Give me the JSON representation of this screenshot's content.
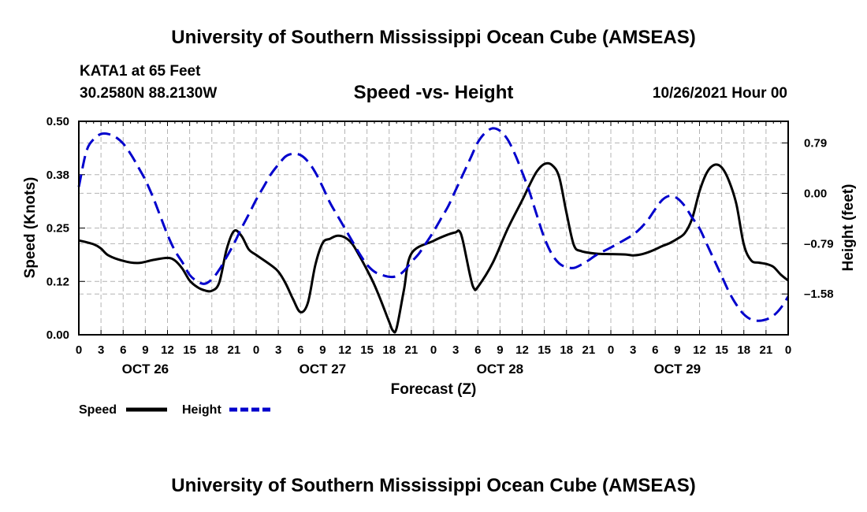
{
  "header": {
    "title": "University of Southern Mississippi Ocean Cube (AMSEAS)",
    "station": "KATA1 at 65 Feet",
    "coords": "30.2580N  88.2130W",
    "subtitle": "Speed -vs- Height",
    "datetime": "10/26/2021 Hour 00"
  },
  "footer": {
    "title": "University of Southern Mississippi Ocean Cube (AMSEAS)"
  },
  "chart_data": {
    "type": "line",
    "xlabel": "Forecast (Z)",
    "ylabel_left": "Speed (Knots)",
    "ylabel_right": "Height (feet)",
    "x_hours_range": [
      0,
      96
    ],
    "x_tick_labels": [
      "0",
      "3",
      "6",
      "9",
      "12",
      "15",
      "18",
      "21",
      "0",
      "3",
      "6",
      "9",
      "12",
      "15",
      "18",
      "21",
      "0",
      "3",
      "6",
      "9",
      "12",
      "15",
      "18",
      "21",
      "0",
      "3",
      "6",
      "9",
      "12",
      "15",
      "18",
      "21",
      "0"
    ],
    "day_labels": [
      {
        "label": "OCT 26",
        "hour": 9
      },
      {
        "label": "OCT 27",
        "hour": 33
      },
      {
        "label": "OCT 28",
        "hour": 57
      },
      {
        "label": "OCT 29",
        "hour": 81
      }
    ],
    "left_axis": {
      "ylim": [
        0,
        0.5
      ],
      "ticks": [
        0.0,
        0.125,
        0.25,
        0.375,
        0.5
      ],
      "tick_labels": [
        "0.00",
        "0.12",
        "0.25",
        "0.38",
        "0.50"
      ]
    },
    "right_axis": {
      "ylim": [
        -2.22,
        1.13
      ],
      "ticks": [
        0.79,
        0.0,
        -0.79,
        -1.58
      ],
      "tick_labels": [
        "0.79",
        "0.00",
        "-0.79",
        "-1.58"
      ]
    },
    "grid": true,
    "legend": [
      {
        "name": "Speed",
        "color": "#000000",
        "style": "solid"
      },
      {
        "name": "Height",
        "color": "#0000cc",
        "style": "dashed"
      }
    ],
    "series": [
      {
        "name": "Speed",
        "axis": "left",
        "color": "#000000",
        "dashed": false,
        "points": [
          [
            0,
            0.221
          ],
          [
            2,
            0.212
          ],
          [
            3,
            0.202
          ],
          [
            4,
            0.186
          ],
          [
            6,
            0.173
          ],
          [
            8,
            0.168
          ],
          [
            10,
            0.175
          ],
          [
            12,
            0.18
          ],
          [
            13,
            0.174
          ],
          [
            14,
            0.155
          ],
          [
            15,
            0.127
          ],
          [
            16,
            0.112
          ],
          [
            17,
            0.104
          ],
          [
            18,
            0.103
          ],
          [
            19,
            0.122
          ],
          [
            20,
            0.2
          ],
          [
            21,
            0.243
          ],
          [
            22,
            0.232
          ],
          [
            23,
            0.2
          ],
          [
            24,
            0.187
          ],
          [
            26,
            0.163
          ],
          [
            27,
            0.148
          ],
          [
            28,
            0.12
          ],
          [
            29,
            0.083
          ],
          [
            30,
            0.053
          ],
          [
            31,
            0.075
          ],
          [
            32,
            0.163
          ],
          [
            33,
            0.215
          ],
          [
            34,
            0.225
          ],
          [
            35,
            0.232
          ],
          [
            36,
            0.228
          ],
          [
            37,
            0.213
          ],
          [
            38,
            0.184
          ],
          [
            39,
            0.152
          ],
          [
            40,
            0.117
          ],
          [
            41,
            0.075
          ],
          [
            42,
            0.03
          ],
          [
            42.5,
            0.01
          ],
          [
            43,
            0.015
          ],
          [
            44,
            0.105
          ],
          [
            45,
            0.19
          ],
          [
            48,
            0.22
          ],
          [
            50,
            0.235
          ],
          [
            51,
            0.24
          ],
          [
            51.5,
            0.243
          ],
          [
            52,
            0.218
          ],
          [
            53,
            0.135
          ],
          [
            53.5,
            0.108
          ],
          [
            54,
            0.112
          ],
          [
            56,
            0.168
          ],
          [
            58,
            0.247
          ],
          [
            60,
            0.315
          ],
          [
            61,
            0.351
          ],
          [
            62,
            0.383
          ],
          [
            63,
            0.4
          ],
          [
            64,
            0.398
          ],
          [
            65,
            0.37
          ],
          [
            66,
            0.285
          ],
          [
            67,
            0.21
          ],
          [
            68,
            0.196
          ],
          [
            70,
            0.19
          ],
          [
            72,
            0.189
          ],
          [
            74,
            0.188
          ],
          [
            75,
            0.186
          ],
          [
            76,
            0.188
          ],
          [
            77,
            0.193
          ],
          [
            78,
            0.2
          ],
          [
            79,
            0.208
          ],
          [
            80,
            0.215
          ],
          [
            81,
            0.225
          ],
          [
            82,
            0.238
          ],
          [
            83,
            0.272
          ],
          [
            84,
            0.336
          ],
          [
            85,
            0.38
          ],
          [
            86,
            0.398
          ],
          [
            87,
            0.392
          ],
          [
            88,
            0.36
          ],
          [
            89,
            0.305
          ],
          [
            90,
            0.211
          ],
          [
            91,
            0.174
          ],
          [
            92,
            0.169
          ],
          [
            93,
            0.166
          ],
          [
            94,
            0.159
          ],
          [
            95,
            0.141
          ],
          [
            96,
            0.127
          ]
        ]
      },
      {
        "name": "Height",
        "axis": "right",
        "color": "#0000cc",
        "dashed": true,
        "points": [
          [
            0,
            0.1
          ],
          [
            1,
            0.65
          ],
          [
            2,
            0.85
          ],
          [
            3,
            0.93
          ],
          [
            4,
            0.93
          ],
          [
            5,
            0.88
          ],
          [
            6,
            0.78
          ],
          [
            7,
            0.62
          ],
          [
            8,
            0.42
          ],
          [
            9,
            0.21
          ],
          [
            10,
            -0.05
          ],
          [
            11,
            -0.35
          ],
          [
            12,
            -0.65
          ],
          [
            13,
            -0.9
          ],
          [
            14,
            -1.08
          ],
          [
            15,
            -1.28
          ],
          [
            16,
            -1.38
          ],
          [
            17,
            -1.42
          ],
          [
            18,
            -1.35
          ],
          [
            19,
            -1.2
          ],
          [
            20,
            -1.0
          ],
          [
            21,
            -0.79
          ],
          [
            22,
            -0.55
          ],
          [
            23,
            -0.33
          ],
          [
            24,
            -0.1
          ],
          [
            25,
            0.1
          ],
          [
            26,
            0.3
          ],
          [
            27,
            0.45
          ],
          [
            28,
            0.58
          ],
          [
            29,
            0.62
          ],
          [
            30,
            0.6
          ],
          [
            31,
            0.5
          ],
          [
            32,
            0.33
          ],
          [
            33,
            0.1
          ],
          [
            34,
            -0.15
          ],
          [
            35,
            -0.35
          ],
          [
            36,
            -0.55
          ],
          [
            37,
            -0.75
          ],
          [
            38,
            -0.95
          ],
          [
            39,
            -1.12
          ],
          [
            40,
            -1.23
          ],
          [
            41,
            -1.28
          ],
          [
            42,
            -1.31
          ],
          [
            43,
            -1.3
          ],
          [
            44,
            -1.22
          ],
          [
            45,
            -1.08
          ],
          [
            46,
            -0.95
          ],
          [
            47,
            -0.78
          ],
          [
            48,
            -0.6
          ],
          [
            49,
            -0.4
          ],
          [
            50,
            -0.2
          ],
          [
            51,
            0.05
          ],
          [
            52,
            0.3
          ],
          [
            53,
            0.55
          ],
          [
            54,
            0.8
          ],
          [
            55,
            0.95
          ],
          [
            56,
            1.02
          ],
          [
            57,
            0.98
          ],
          [
            58,
            0.85
          ],
          [
            59,
            0.62
          ],
          [
            60,
            0.33
          ],
          [
            61,
            0.02
          ],
          [
            62,
            -0.35
          ],
          [
            63,
            -0.7
          ],
          [
            64,
            -0.95
          ],
          [
            65,
            -1.1
          ],
          [
            66,
            -1.16
          ],
          [
            67,
            -1.17
          ],
          [
            68,
            -1.12
          ],
          [
            69,
            -1.05
          ],
          [
            70,
            -0.97
          ],
          [
            72,
            -0.85
          ],
          [
            74,
            -0.72
          ],
          [
            75,
            -0.65
          ],
          [
            76,
            -0.55
          ],
          [
            77,
            -0.42
          ],
          [
            78,
            -0.25
          ],
          [
            79,
            -0.1
          ],
          [
            80,
            -0.04
          ],
          [
            81,
            -0.08
          ],
          [
            82,
            -0.2
          ],
          [
            83,
            -0.38
          ],
          [
            84,
            -0.55
          ],
          [
            85,
            -0.8
          ],
          [
            86,
            -1.05
          ],
          [
            87,
            -1.3
          ],
          [
            88,
            -1.55
          ],
          [
            89,
            -1.75
          ],
          [
            90,
            -1.9
          ],
          [
            91,
            -1.98
          ],
          [
            92,
            -2.0
          ],
          [
            93,
            -1.98
          ],
          [
            94,
            -1.92
          ],
          [
            95,
            -1.8
          ],
          [
            96,
            -1.62
          ]
        ]
      }
    ]
  }
}
